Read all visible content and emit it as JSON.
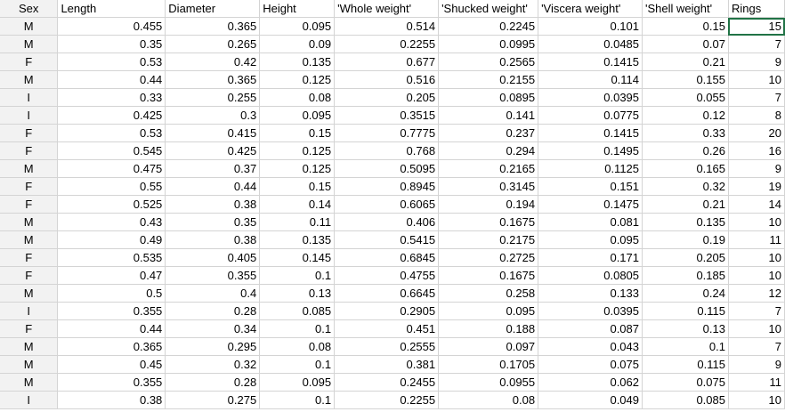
{
  "columns": [
    "Sex",
    "Length",
    "Diameter",
    "Height",
    "'Whole weight'",
    "'Shucked weight'",
    "'Viscera weight'",
    "'Shell weight'",
    "Rings"
  ],
  "rows": [
    [
      "M",
      "0.455",
      "0.365",
      "0.095",
      "0.514",
      "0.2245",
      "0.101",
      "0.15",
      "15"
    ],
    [
      "M",
      "0.35",
      "0.265",
      "0.09",
      "0.2255",
      "0.0995",
      "0.0485",
      "0.07",
      "7"
    ],
    [
      "F",
      "0.53",
      "0.42",
      "0.135",
      "0.677",
      "0.2565",
      "0.1415",
      "0.21",
      "9"
    ],
    [
      "M",
      "0.44",
      "0.365",
      "0.125",
      "0.516",
      "0.2155",
      "0.114",
      "0.155",
      "10"
    ],
    [
      "I",
      "0.33",
      "0.255",
      "0.08",
      "0.205",
      "0.0895",
      "0.0395",
      "0.055",
      "7"
    ],
    [
      "I",
      "0.425",
      "0.3",
      "0.095",
      "0.3515",
      "0.141",
      "0.0775",
      "0.12",
      "8"
    ],
    [
      "F",
      "0.53",
      "0.415",
      "0.15",
      "0.7775",
      "0.237",
      "0.1415",
      "0.33",
      "20"
    ],
    [
      "F",
      "0.545",
      "0.425",
      "0.125",
      "0.768",
      "0.294",
      "0.1495",
      "0.26",
      "16"
    ],
    [
      "M",
      "0.475",
      "0.37",
      "0.125",
      "0.5095",
      "0.2165",
      "0.1125",
      "0.165",
      "9"
    ],
    [
      "F",
      "0.55",
      "0.44",
      "0.15",
      "0.8945",
      "0.3145",
      "0.151",
      "0.32",
      "19"
    ],
    [
      "F",
      "0.525",
      "0.38",
      "0.14",
      "0.6065",
      "0.194",
      "0.1475",
      "0.21",
      "14"
    ],
    [
      "M",
      "0.43",
      "0.35",
      "0.11",
      "0.406",
      "0.1675",
      "0.081",
      "0.135",
      "10"
    ],
    [
      "M",
      "0.49",
      "0.38",
      "0.135",
      "0.5415",
      "0.2175",
      "0.095",
      "0.19",
      "11"
    ],
    [
      "F",
      "0.535",
      "0.405",
      "0.145",
      "0.6845",
      "0.2725",
      "0.171",
      "0.205",
      "10"
    ],
    [
      "F",
      "0.47",
      "0.355",
      "0.1",
      "0.4755",
      "0.1675",
      "0.0805",
      "0.185",
      "10"
    ],
    [
      "M",
      "0.5",
      "0.4",
      "0.13",
      "0.6645",
      "0.258",
      "0.133",
      "0.24",
      "12"
    ],
    [
      "I",
      "0.355",
      "0.28",
      "0.085",
      "0.2905",
      "0.095",
      "0.0395",
      "0.115",
      "7"
    ],
    [
      "F",
      "0.44",
      "0.34",
      "0.1",
      "0.451",
      "0.188",
      "0.087",
      "0.13",
      "10"
    ],
    [
      "M",
      "0.365",
      "0.295",
      "0.08",
      "0.2555",
      "0.097",
      "0.043",
      "0.1",
      "7"
    ],
    [
      "M",
      "0.45",
      "0.32",
      "0.1",
      "0.381",
      "0.1705",
      "0.075",
      "0.115",
      "9"
    ],
    [
      "M",
      "0.355",
      "0.28",
      "0.095",
      "0.2455",
      "0.0955",
      "0.062",
      "0.075",
      "11"
    ],
    [
      "I",
      "0.38",
      "0.275",
      "0.1",
      "0.2255",
      "0.08",
      "0.049",
      "0.085",
      "10"
    ]
  ],
  "colors": {
    "gridline": "#d4d4d4",
    "selection": "#217346",
    "sex_column_fill": "#f2f2f2"
  }
}
